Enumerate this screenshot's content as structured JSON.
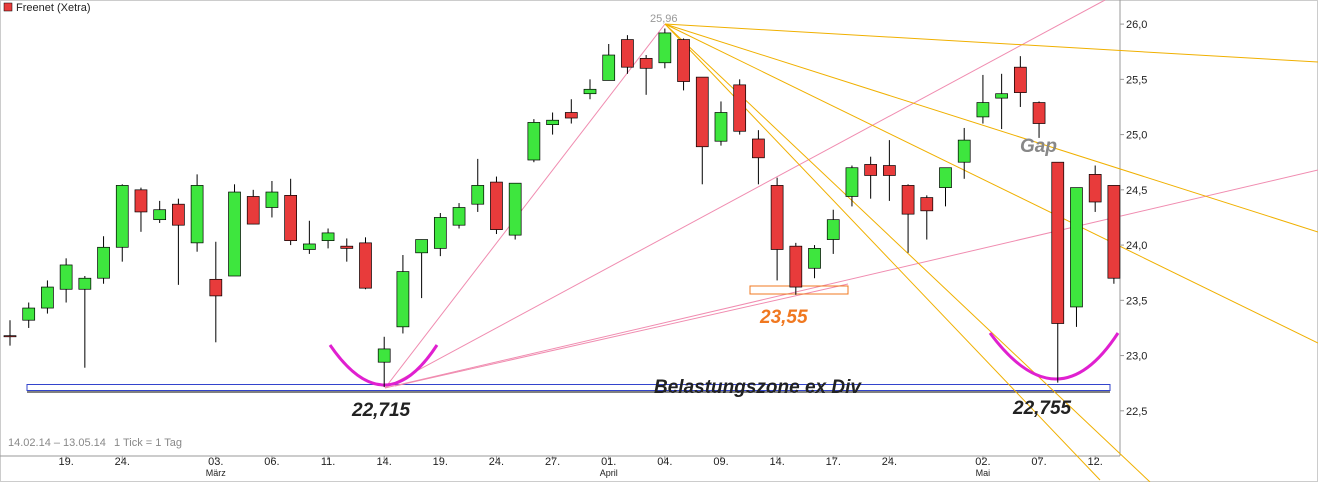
{
  "chart_data": {
    "type": "candlestick",
    "title": "Freenet (Xetra)",
    "date_range": "14.02.14 – 13.05.14",
    "tick_note": "1 Tick = 1 Tag",
    "categories": [
      null,
      null,
      null,
      "19.",
      null,
      null,
      "24.",
      null,
      null,
      null,
      null,
      "03.",
      null,
      null,
      "06.",
      null,
      null,
      "11.",
      null,
      null,
      "14.",
      null,
      null,
      "19.",
      null,
      null,
      "24.",
      null,
      null,
      "27.",
      null,
      null,
      "01.",
      null,
      null,
      "04.",
      null,
      null,
      "09.",
      null,
      null,
      "14.",
      null,
      null,
      "17.",
      null,
      null,
      "24.",
      null,
      null,
      null,
      null,
      "02.",
      null,
      null,
      "07.",
      null,
      null,
      "12.",
      null
    ],
    "month_labels": [
      null,
      null,
      null,
      null,
      null,
      null,
      null,
      null,
      null,
      null,
      null,
      "März",
      null,
      null,
      null,
      null,
      null,
      null,
      null,
      null,
      null,
      null,
      null,
      null,
      null,
      null,
      null,
      null,
      null,
      null,
      null,
      null,
      "April",
      null,
      null,
      null,
      null,
      null,
      null,
      null,
      null,
      null,
      null,
      null,
      null,
      null,
      null,
      null,
      null,
      null,
      null,
      null,
      "Mai",
      null,
      null,
      null,
      null,
      null,
      null,
      null
    ],
    "open": [
      23.18,
      23.32,
      23.43,
      23.6,
      23.6,
      23.7,
      23.98,
      24.5,
      24.23,
      24.37,
      24.02,
      23.69,
      23.72,
      24.44,
      24.34,
      24.45,
      23.96,
      24.04,
      23.99,
      24.02,
      22.94,
      23.26,
      23.93,
      23.97,
      24.18,
      24.37,
      24.57,
      24.09,
      24.77,
      25.09,
      25.2,
      25.37,
      25.49,
      25.86,
      25.69,
      25.65,
      25.86,
      25.52,
      24.94,
      25.45,
      24.96,
      24.54,
      23.99,
      23.79,
      24.05,
      24.44,
      24.73,
      24.72,
      24.54,
      24.43,
      24.52,
      24.75,
      25.16,
      25.33,
      25.61,
      25.29,
      24.75,
      23.44,
      24.64,
      24.54
    ],
    "high": [
      23.32,
      23.48,
      23.68,
      23.88,
      23.72,
      24.08,
      24.55,
      24.52,
      24.4,
      24.42,
      24.64,
      24.03,
      24.55,
      24.5,
      24.58,
      24.6,
      24.22,
      24.15,
      24.06,
      24.07,
      23.17,
      23.91,
      24.05,
      24.29,
      24.38,
      24.78,
      24.62,
      24.56,
      25.14,
      25.2,
      25.32,
      25.5,
      25.82,
      25.9,
      25.72,
      25.96,
      25.87,
      25.52,
      25.3,
      25.5,
      25.04,
      24.61,
      24.02,
      24.0,
      24.32,
      24.72,
      24.8,
      24.95,
      24.55,
      24.45,
      24.7,
      25.06,
      25.54,
      25.55,
      25.71,
      25.3,
      24.75,
      24.52,
      24.72,
      24.54
    ],
    "low": [
      23.09,
      23.25,
      23.38,
      23.48,
      22.89,
      23.65,
      23.85,
      24.12,
      24.2,
      23.64,
      23.94,
      23.12,
      23.72,
      24.19,
      24.25,
      24.0,
      23.92,
      23.97,
      23.85,
      23.6,
      22.715,
      23.2,
      23.52,
      23.9,
      24.15,
      24.3,
      24.1,
      24.05,
      24.75,
      25.0,
      25.1,
      25.32,
      25.49,
      25.55,
      25.36,
      25.6,
      25.4,
      24.55,
      24.9,
      25.0,
      24.55,
      23.68,
      23.55,
      23.7,
      23.92,
      24.35,
      24.42,
      24.4,
      23.93,
      24.05,
      24.35,
      24.6,
      25.1,
      25.05,
      25.25,
      24.97,
      22.755,
      23.26,
      24.3,
      23.65
    ],
    "close": [
      23.17,
      23.43,
      23.62,
      23.82,
      23.7,
      23.98,
      24.54,
      24.3,
      24.32,
      24.18,
      24.54,
      23.54,
      24.48,
      24.19,
      24.48,
      24.04,
      24.01,
      24.11,
      23.97,
      23.61,
      23.06,
      23.76,
      24.05,
      24.25,
      24.34,
      24.54,
      24.14,
      24.56,
      25.11,
      25.13,
      25.15,
      25.41,
      25.72,
      25.61,
      25.6,
      25.92,
      25.48,
      24.89,
      25.2,
      25.03,
      24.79,
      23.96,
      23.62,
      23.97,
      24.23,
      24.7,
      24.63,
      24.63,
      24.28,
      24.31,
      24.7,
      24.95,
      25.29,
      25.37,
      25.38,
      25.1,
      23.29,
      24.52,
      24.39,
      23.7
    ],
    "up_color": "#3ee63e",
    "down_color": "#e83b3b",
    "ylim": [
      22.1,
      26.2
    ],
    "yticks": [
      {
        "value": 22.5,
        "label": "22,5"
      },
      {
        "value": 23,
        "label": "23,0"
      },
      {
        "value": 23.5,
        "label": "23,5"
      },
      {
        "value": 24,
        "label": "24,0"
      },
      {
        "value": 24.5,
        "label": "24,5"
      },
      {
        "value": 25,
        "label": "25,0"
      },
      {
        "value": 25.5,
        "label": "25,5"
      },
      {
        "value": 26,
        "label": "26,0"
      }
    ],
    "annotations": [
      "25,96",
      "23,55",
      "22,715",
      "22,755",
      "Gap",
      "Belastungszone ex Div"
    ]
  }
}
